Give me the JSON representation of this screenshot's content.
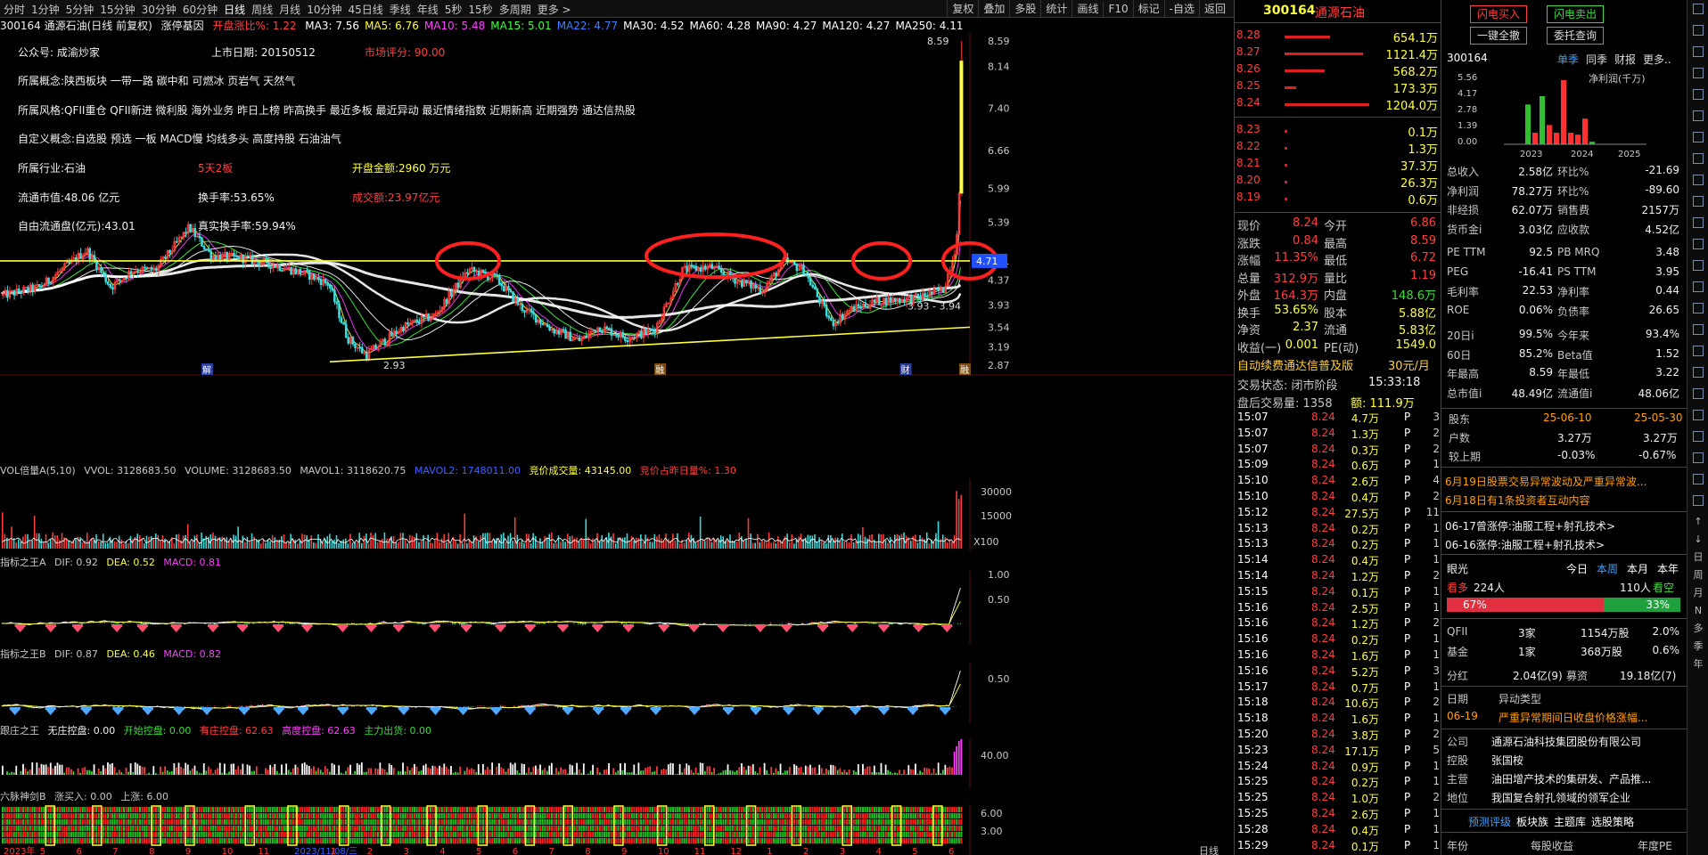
{
  "topbar": {
    "periods": [
      "分时",
      "1分钟",
      "5分钟",
      "15分钟",
      "30分钟",
      "60分钟",
      "日线",
      "周线",
      "月线",
      "10分钟",
      "45日线",
      "季线",
      "年线",
      "5秒",
      "15秒",
      "多周期",
      "更多 >"
    ],
    "active_period": "日线",
    "actions": [
      "复权",
      "叠加",
      "多股",
      "统计",
      "画线",
      "F10",
      "标记",
      "-自选",
      "返回"
    ]
  },
  "main": {
    "stock_title": "300164 通源石油(日线 前复权)",
    "gene_label": "涨停基因",
    "open_pct": "开盘涨比%: 1.22",
    "ma": [
      "MA3: 7.56",
      "MA5: 6.76",
      "MA10: 5.48",
      "MA15: 5.01",
      "MA22: 4.77",
      "MA30: 4.52",
      "MA60: 4.28",
      "MA90: 4.27",
      "MA120: 4.27",
      "MA250: 4.11"
    ],
    "ma_colors": [
      "#ffffff",
      "#ffff40",
      "#ff40ff",
      "#40ff40",
      "#4080ff",
      "#ffffff",
      "#ffffff",
      "#ffffff",
      "#ffffff",
      "#ffffff"
    ],
    "info": {
      "gzh": "公众号: 成渝炒家",
      "listing": "上市日期: 20150512",
      "score": "市场评分: 90.00",
      "concept": "所属概念:陕西板块 一带一路 碳中和 可燃冰 页岩气 天然气",
      "style": "所属风格:QFII重仓 QFII新进 微利股 海外业务 昨日上榜 昨高换手 最近多板 最近异动 最近情绪指数 近期新高 近期强势 通达信热股",
      "custom": "自定义概念:自选股 预选 一板 MACD慢 均线多头 高度持股 石油油气",
      "industry": "所属行业:石油",
      "streak": "5天2板",
      "open_amount": "开盘金额:2960 万元",
      "float_mv": "流通市值:48.06 亿元",
      "turnover": "换手率:53.65%",
      "volume_amt": "成交额:23.97亿元",
      "free_float": "自由流通盘(亿元):43.01",
      "real_turnover": "真实换手率:59.94%"
    },
    "price_axis": [
      "8.59",
      "8.14",
      "7.40",
      "6.66",
      "5.99",
      "5.39",
      "4.71",
      "4.37",
      "3.93",
      "3.54",
      "3.19",
      "2.87"
    ],
    "current_price_tag": "4.71",
    "high_label": "8.59",
    "low_label": "2.93",
    "range_label": "3.93 - 3.94",
    "markers": [
      "解",
      "融",
      "财",
      "融"
    ]
  },
  "chart_data": {
    "type": "candlestick",
    "title": "300164 通源石油(日线 前复权)",
    "ylim": [
      2.87,
      8.59
    ],
    "last_close": 8.24,
    "period_high": 8.59,
    "period_low": 2.93,
    "resistance_level": 4.71,
    "x_ticks": [
      "2023年",
      "5",
      "6",
      "7",
      "8",
      "9",
      "10",
      "11",
      "2023/11/08/三",
      "1",
      "2",
      "3",
      "4",
      "5",
      "6",
      "7",
      "8",
      "9",
      "10",
      "11",
      "12",
      "1",
      "2",
      "3",
      "4",
      "5",
      "6"
    ],
    "annotations": [
      "red ellipses marking resistance touches near 4.71",
      "yellow horizontal line at 4.71",
      "yellow rising support line from 2.93"
    ]
  },
  "indicators": {
    "vol": {
      "name": "VOL倍量A(5,10)",
      "vvol": "VVOL: 3128683.50",
      "volume": "VOLUME: 3128683.50",
      "mavol1": "MAVOL1: 3118620.75",
      "mavol2": "MAVOL2: 1748011.00",
      "auction": "竞价成交量: 43145.00",
      "auction_ratio": "竞价占昨日量%: 1.30",
      "axis": [
        "30000",
        "15000",
        "X100"
      ]
    },
    "a": {
      "name": "指标之王A",
      "dif": "DIF: 0.92",
      "dea": "DEA: 0.52",
      "macd": "MACD: 0.81",
      "axis": [
        "1.00",
        "0.50"
      ]
    },
    "b": {
      "name": "指标之王B",
      "dif": "DIF: 0.87",
      "dea": "DEA: 0.46",
      "macd": "MACD: 0.82",
      "axis": [
        "0.50"
      ]
    },
    "c": {
      "name": "跟庄之王",
      "wk": "无庄控盘: 0.00",
      "ks": "开始控盘: 0.00",
      "yz": "有庄控盘: 62.63",
      "gd": "高度控盘: 62.63",
      "cx": "主力出货: 0.00",
      "axis": [
        "40.00"
      ]
    },
    "d": {
      "name": "六脉神剑B",
      "buy": "涨买入: 0.00",
      "up": "上涨: 6.00",
      "axis": [
        "6.00",
        "3.00"
      ]
    },
    "bottom_axis_label": "日线"
  },
  "orderbook": {
    "code": "300164",
    "name": "通源石油",
    "asks": [
      {
        "p": "8.28",
        "v": "654.1万",
        "w": 0.54
      },
      {
        "p": "8.27",
        "v": "1121.4万",
        "w": 0.93
      },
      {
        "p": "8.26",
        "v": "568.2万",
        "w": 0.47
      },
      {
        "p": "8.25",
        "v": "173.3万",
        "w": 0.14
      },
      {
        "p": "8.24",
        "v": "1204.0万",
        "w": 1.0
      }
    ],
    "bids": [
      {
        "p": "8.23",
        "v": "0.1万"
      },
      {
        "p": "8.22",
        "v": "1.3万"
      },
      {
        "p": "8.21",
        "v": "37.3万"
      },
      {
        "p": "8.20",
        "v": "26.3万"
      },
      {
        "p": "8.19",
        "v": "0.6万"
      }
    ],
    "quote": [
      {
        "l": "现价",
        "lv": "8.24",
        "r": "今开",
        "rv": "6.86"
      },
      {
        "l": "涨跌",
        "lv": "0.84",
        "r": "最高",
        "rv": "8.59"
      },
      {
        "l": "涨幅",
        "lv": "11.35%",
        "r": "最低",
        "rv": "6.72"
      },
      {
        "l": "总量",
        "lv": "312.9万",
        "r": "量比",
        "rv": "1.19"
      },
      {
        "l": "外盘",
        "lv": "164.3万",
        "r": "内盘",
        "rv": "148.6万"
      },
      {
        "l": "换手",
        "lv": "53.65%",
        "r": "股本",
        "rv": "5.88亿"
      },
      {
        "l": "净资",
        "lv": "2.37",
        "r": "流通",
        "rv": "5.83亿"
      },
      {
        "l": "收益(一)",
        "lv": "0.001",
        "r": "PE(动)",
        "rv": "1549.0"
      }
    ],
    "promo": "自动续费通达信普及版",
    "promo_price": "30元/月",
    "trade_state": "交易状态: 闭市阶段",
    "trade_time": "15:33:18",
    "after_hours": "盘后交易量: 1358",
    "after_amount": "额: 111.9万",
    "ticks": [
      [
        "15:07",
        "8.24",
        "4.7万",
        "P",
        "3"
      ],
      [
        "15:07",
        "8.24",
        "1.3万",
        "P",
        "2"
      ],
      [
        "15:07",
        "8.24",
        "0.3万",
        "P",
        "2"
      ],
      [
        "15:09",
        "8.24",
        "0.6万",
        "P",
        "1"
      ],
      [
        "15:10",
        "8.24",
        "2.6万",
        "P",
        "4"
      ],
      [
        "15:10",
        "8.24",
        "0.4万",
        "P",
        "2"
      ],
      [
        "15:12",
        "8.24",
        "27.5万",
        "P",
        "11"
      ],
      [
        "15:13",
        "8.24",
        "0.2万",
        "P",
        "1"
      ],
      [
        "15:13",
        "8.24",
        "0.2万",
        "P",
        "1"
      ],
      [
        "15:14",
        "8.24",
        "0.4万",
        "P",
        "1"
      ],
      [
        "15:14",
        "8.24",
        "1.2万",
        "P",
        "2"
      ],
      [
        "15:15",
        "8.24",
        "0.1万",
        "P",
        "1"
      ],
      [
        "15:16",
        "8.24",
        "2.5万",
        "P",
        "1"
      ],
      [
        "15:16",
        "8.24",
        "1.2万",
        "P",
        "2"
      ],
      [
        "15:16",
        "8.24",
        "0.2万",
        "P",
        "1"
      ],
      [
        "15:16",
        "8.24",
        "1.6万",
        "P",
        "1"
      ],
      [
        "15:16",
        "8.24",
        "5.2万",
        "P",
        "3"
      ],
      [
        "15:17",
        "8.24",
        "0.7万",
        "P",
        "1"
      ],
      [
        "15:18",
        "8.24",
        "10.6万",
        "P",
        "2"
      ],
      [
        "15:18",
        "8.24",
        "1.6万",
        "P",
        "1"
      ],
      [
        "15:20",
        "8.24",
        "3.8万",
        "P",
        "2"
      ],
      [
        "15:23",
        "8.24",
        "17.1万",
        "P",
        "5"
      ],
      [
        "15:24",
        "8.24",
        "0.9万",
        "P",
        "1"
      ],
      [
        "15:25",
        "8.24",
        "0.2万",
        "P",
        "1"
      ],
      [
        "15:25",
        "8.24",
        "1.0万",
        "P",
        "2"
      ],
      [
        "15:25",
        "8.24",
        "2.6万",
        "P",
        "1"
      ],
      [
        "15:28",
        "8.24",
        "0.4万",
        "P",
        "1"
      ],
      [
        "15:29",
        "8.24",
        "0.1万",
        "P",
        "1"
      ]
    ]
  },
  "right": {
    "flash_buy": "闪电买入",
    "flash_sell": "闪电卖出",
    "one_key": "一键全撤",
    "query": "委托查询",
    "code": "300164",
    "tabs": [
      "单季",
      "同季",
      "财报",
      "更多.."
    ],
    "net_profit": "净利润(千万)",
    "mini_axis": [
      "5.56",
      "4.17",
      "2.78",
      "1.39",
      "0.00"
    ],
    "mini_years": [
      "2023",
      "2024",
      "2025"
    ],
    "mini_bars": [
      {
        "v": 0.62,
        "red": false
      },
      {
        "v": 0.18,
        "red": true
      },
      {
        "v": 0.75,
        "red": false
      },
      {
        "v": 0.3,
        "red": true
      },
      {
        "v": 0.18,
        "red": true
      },
      {
        "v": 1.0,
        "red": true
      },
      {
        "v": 0.18,
        "red": true
      },
      {
        "v": 0.15,
        "red": true
      },
      {
        "v": 0.4,
        "red": true
      },
      {
        "v": 0.04,
        "red": false
      }
    ],
    "fin": [
      {
        "a": "总收入",
        "b": "2.58亿",
        "c": "环比%",
        "d": "-21.69"
      },
      {
        "a": "净利润",
        "b": "78.27万",
        "c": "环比%",
        "d": "-89.60"
      },
      {
        "a": "非经损",
        "b": "62.07万",
        "c": "销售费",
        "d": "2157万"
      },
      {
        "a": "货币金i",
        "b": "3.03亿",
        "c": "应收款",
        "d": "4.52亿"
      },
      {
        "a": "PE TTM",
        "b": "92.5",
        "c": "PB MRQ",
        "d": "3.48"
      },
      {
        "a": "PEG",
        "b": "-16.41",
        "c": "PS TTM",
        "d": "3.95"
      },
      {
        "a": "毛利率",
        "b": "22.53",
        "c": "净利率",
        "d": "0.44"
      },
      {
        "a": "ROE",
        "b": "0.06%",
        "c": "负债率",
        "d": "26.65"
      },
      {
        "a": "20日i",
        "b": "99.5%",
        "c": "今年来",
        "d": "93.4%"
      },
      {
        "a": "60日",
        "b": "85.2%",
        "c": "Beta值",
        "d": "1.52"
      },
      {
        "a": "年最高",
        "b": "8.59",
        "c": "年最低",
        "d": "3.22"
      },
      {
        "a": "总市值i",
        "b": "48.49亿",
        "c": "流通值i",
        "d": "48.06亿"
      }
    ],
    "holders": {
      "label": "股东",
      "d1": "25-06-10",
      "d2": "25-05-30",
      "r1": "户数",
      "r1a": "3.27万",
      "r1b": "3.27万",
      "r2": "较上期",
      "r2a": "-0.03%",
      "r2b": "-0.67%"
    },
    "news": [
      "6月19日股票交易异常波动及严重异常波...",
      "6月18日有1条投资者互动内容"
    ],
    "limit_up": [
      "06-17曾涨停:油服工程+射孔技术>",
      "06-16涨停:油服工程+射孔技术>"
    ],
    "sentiment": {
      "label": "眼光",
      "tabs": [
        "今日",
        "本周",
        "本月",
        "本年"
      ],
      "bull": "看多",
      "bull_n": "224人",
      "bear_n": "110人",
      "bear": "看空",
      "bull_pct": "67%",
      "bear_pct": "33%",
      "bull_frac": 0.67
    },
    "inst": [
      {
        "a": "QFII",
        "b": "3家",
        "c": "1154万股",
        "d": "2.0%"
      },
      {
        "a": "基金",
        "b": "1家",
        "c": "368万股",
        "d": "0.6%"
      }
    ],
    "dividend": {
      "a": "分红",
      "b": "2.04亿(9)",
      "c": "募资",
      "d": "19.18亿(7)"
    },
    "abnormal": {
      "h1": "日期",
      "h2": "异动类型",
      "d": "06-19",
      "t": "严重异常期间日收盘价格涨幅..."
    },
    "company": [
      {
        "k": "公司",
        "v": "通源石油科技集团股份有限公司"
      },
      {
        "k": "控股",
        "v": "张国桉"
      },
      {
        "k": "主营",
        "v": "油田增产技术的集研发、产品推..."
      },
      {
        "k": "地位",
        "v": "我国复合射孔领域的领军企业"
      }
    ],
    "footer_links": [
      "预测评级",
      "板块族",
      "主题库",
      "选股策略"
    ],
    "footer_row": [
      "年份",
      "每股收益",
      "年度PE"
    ]
  },
  "vtool": [
    "↑",
    "↓",
    "日",
    "周",
    "月",
    "N",
    "多",
    "季",
    "年"
  ],
  "colors": {
    "up": "#ff3c3c",
    "down": "#3cdcdc",
    "ma_white": "#ffffff",
    "resist": "#ffff40",
    "ellipse": "#ff2020"
  }
}
